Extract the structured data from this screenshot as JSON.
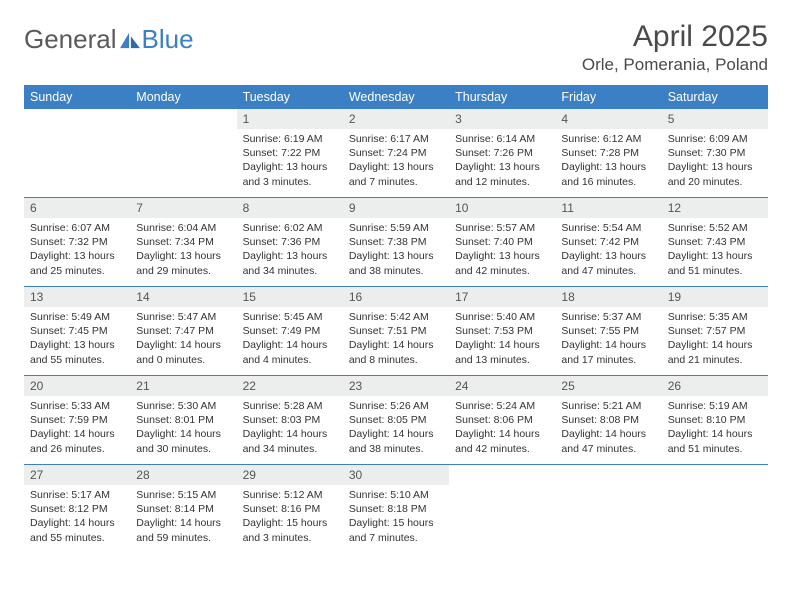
{
  "logo": {
    "text1": "General",
    "text2": "Blue"
  },
  "title": "April 2025",
  "location": "Orle, Pomerania, Poland",
  "colors": {
    "header_bg": "#3b7fc4",
    "header_text": "#ffffff",
    "daynum_bg": "#eceded",
    "row_divider": "#3b7fc4",
    "body_text": "#333333",
    "title_text": "#4a4a4a"
  },
  "typography": {
    "body_fontsize_pt": 8,
    "title_fontsize_pt": 22
  },
  "day_headers": [
    "Sunday",
    "Monday",
    "Tuesday",
    "Wednesday",
    "Thursday",
    "Friday",
    "Saturday"
  ],
  "weeks": [
    [
      null,
      null,
      {
        "n": "1",
        "sr": "6:19 AM",
        "ss": "7:22 PM",
        "dl": "13 hours and 3 minutes."
      },
      {
        "n": "2",
        "sr": "6:17 AM",
        "ss": "7:24 PM",
        "dl": "13 hours and 7 minutes."
      },
      {
        "n": "3",
        "sr": "6:14 AM",
        "ss": "7:26 PM",
        "dl": "13 hours and 12 minutes."
      },
      {
        "n": "4",
        "sr": "6:12 AM",
        "ss": "7:28 PM",
        "dl": "13 hours and 16 minutes."
      },
      {
        "n": "5",
        "sr": "6:09 AM",
        "ss": "7:30 PM",
        "dl": "13 hours and 20 minutes."
      }
    ],
    [
      {
        "n": "6",
        "sr": "6:07 AM",
        "ss": "7:32 PM",
        "dl": "13 hours and 25 minutes."
      },
      {
        "n": "7",
        "sr": "6:04 AM",
        "ss": "7:34 PM",
        "dl": "13 hours and 29 minutes."
      },
      {
        "n": "8",
        "sr": "6:02 AM",
        "ss": "7:36 PM",
        "dl": "13 hours and 34 minutes."
      },
      {
        "n": "9",
        "sr": "5:59 AM",
        "ss": "7:38 PM",
        "dl": "13 hours and 38 minutes."
      },
      {
        "n": "10",
        "sr": "5:57 AM",
        "ss": "7:40 PM",
        "dl": "13 hours and 42 minutes."
      },
      {
        "n": "11",
        "sr": "5:54 AM",
        "ss": "7:42 PM",
        "dl": "13 hours and 47 minutes."
      },
      {
        "n": "12",
        "sr": "5:52 AM",
        "ss": "7:43 PM",
        "dl": "13 hours and 51 minutes."
      }
    ],
    [
      {
        "n": "13",
        "sr": "5:49 AM",
        "ss": "7:45 PM",
        "dl": "13 hours and 55 minutes."
      },
      {
        "n": "14",
        "sr": "5:47 AM",
        "ss": "7:47 PM",
        "dl": "14 hours and 0 minutes."
      },
      {
        "n": "15",
        "sr": "5:45 AM",
        "ss": "7:49 PM",
        "dl": "14 hours and 4 minutes."
      },
      {
        "n": "16",
        "sr": "5:42 AM",
        "ss": "7:51 PM",
        "dl": "14 hours and 8 minutes."
      },
      {
        "n": "17",
        "sr": "5:40 AM",
        "ss": "7:53 PM",
        "dl": "14 hours and 13 minutes."
      },
      {
        "n": "18",
        "sr": "5:37 AM",
        "ss": "7:55 PM",
        "dl": "14 hours and 17 minutes."
      },
      {
        "n": "19",
        "sr": "5:35 AM",
        "ss": "7:57 PM",
        "dl": "14 hours and 21 minutes."
      }
    ],
    [
      {
        "n": "20",
        "sr": "5:33 AM",
        "ss": "7:59 PM",
        "dl": "14 hours and 26 minutes."
      },
      {
        "n": "21",
        "sr": "5:30 AM",
        "ss": "8:01 PM",
        "dl": "14 hours and 30 minutes."
      },
      {
        "n": "22",
        "sr": "5:28 AM",
        "ss": "8:03 PM",
        "dl": "14 hours and 34 minutes."
      },
      {
        "n": "23",
        "sr": "5:26 AM",
        "ss": "8:05 PM",
        "dl": "14 hours and 38 minutes."
      },
      {
        "n": "24",
        "sr": "5:24 AM",
        "ss": "8:06 PM",
        "dl": "14 hours and 42 minutes."
      },
      {
        "n": "25",
        "sr": "5:21 AM",
        "ss": "8:08 PM",
        "dl": "14 hours and 47 minutes."
      },
      {
        "n": "26",
        "sr": "5:19 AM",
        "ss": "8:10 PM",
        "dl": "14 hours and 51 minutes."
      }
    ],
    [
      {
        "n": "27",
        "sr": "5:17 AM",
        "ss": "8:12 PM",
        "dl": "14 hours and 55 minutes."
      },
      {
        "n": "28",
        "sr": "5:15 AM",
        "ss": "8:14 PM",
        "dl": "14 hours and 59 minutes."
      },
      {
        "n": "29",
        "sr": "5:12 AM",
        "ss": "8:16 PM",
        "dl": "15 hours and 3 minutes."
      },
      {
        "n": "30",
        "sr": "5:10 AM",
        "ss": "8:18 PM",
        "dl": "15 hours and 7 minutes."
      },
      null,
      null,
      null
    ]
  ],
  "labels": {
    "sunrise": "Sunrise:",
    "sunset": "Sunset:",
    "daylight": "Daylight:"
  }
}
